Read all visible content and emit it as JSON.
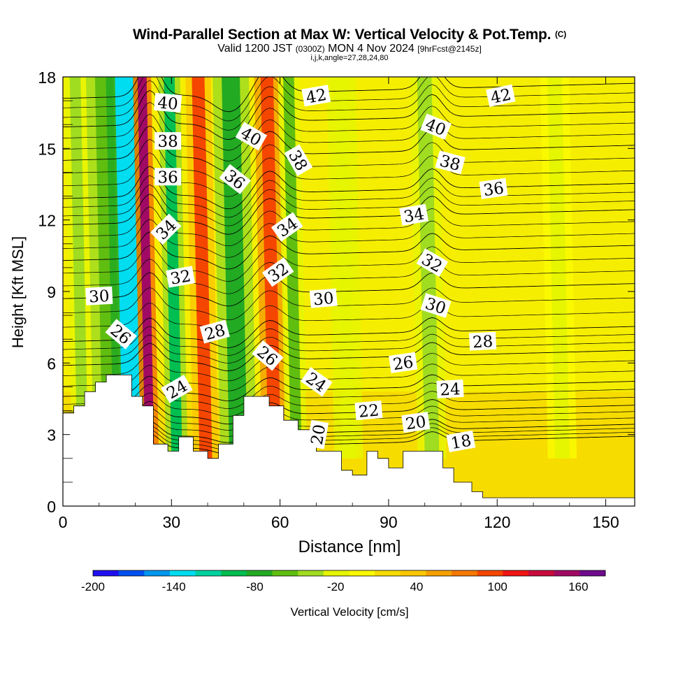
{
  "title": {
    "main": "Wind-Parallel Section at Max W: Vertical Velocity & Pot.Temp.",
    "copyright": "(C)",
    "valid_prefix": "Valid 1200 JST",
    "valid_utc": "(0300Z)",
    "valid_date": "MON 4 Nov 2024",
    "forecast": "[9hrFcst@2145z]",
    "indices": "i,j,k,angle=27,28,24,80"
  },
  "chart_data": {
    "type": "heatmap",
    "xlabel": "Distance [nm]",
    "ylabel": "Height [Kft MSL]",
    "xlim": [
      0,
      158
    ],
    "ylim": [
      0,
      18
    ],
    "x_ticks": [
      0,
      30,
      60,
      90,
      120,
      150
    ],
    "y_ticks": [
      0,
      3,
      6,
      9,
      12,
      15,
      18
    ],
    "colorbar": {
      "label": "Vertical Velocity [cm/s]",
      "range": [
        -200,
        180
      ],
      "tick_labels": [
        "-200",
        "-140",
        "-80",
        "-20",
        "40",
        "100",
        "160"
      ],
      "colors": [
        "#1f0fef",
        "#0050f0",
        "#0096f0",
        "#00dcf0",
        "#00d2a0",
        "#00be50",
        "#22aa22",
        "#60be10",
        "#a0dc20",
        "#e6f500",
        "#fafa00",
        "#f5dc00",
        "#fac800",
        "#f5a000",
        "#f57800",
        "#f54600",
        "#f01414",
        "#c80a3c",
        "#a00a64",
        "#6e0a8c"
      ]
    },
    "w_columns": [
      {
        "x": 5.5,
        "w": 3,
        "value": -30
      },
      {
        "x": 13.5,
        "w": 5,
        "value": -60
      },
      {
        "x": 19,
        "w": 5,
        "value": -140
      },
      {
        "x": 24,
        "w": 2.5,
        "value": 150
      },
      {
        "x": 31.5,
        "w": 3,
        "value": -90
      },
      {
        "x": 39.5,
        "w": 3.5,
        "value": 90
      },
      {
        "x": 48.5,
        "w": 5,
        "value": -70
      },
      {
        "x": 58.5,
        "w": 3.5,
        "value": 100
      },
      {
        "x": 64.5,
        "w": 3,
        "value": -50
      },
      {
        "x": 79,
        "w": 4,
        "value": -25
      },
      {
        "x": 102,
        "w": 4,
        "value": -35
      },
      {
        "x": 138,
        "w": 4,
        "value": -20
      }
    ],
    "terrain_kft": [
      [
        0,
        3.9
      ],
      [
        3,
        3.9
      ],
      [
        3,
        4.2
      ],
      [
        6,
        4.2
      ],
      [
        6,
        4.8
      ],
      [
        9,
        4.8
      ],
      [
        9,
        5.2
      ],
      [
        12,
        5.2
      ],
      [
        12,
        5.5
      ],
      [
        19,
        5.5
      ],
      [
        19,
        4.6
      ],
      [
        22,
        4.6
      ],
      [
        22,
        4.2
      ],
      [
        25,
        4.2
      ],
      [
        25,
        2.6
      ],
      [
        29,
        2.6
      ],
      [
        29,
        2.3
      ],
      [
        32,
        2.3
      ],
      [
        32,
        2.9
      ],
      [
        36,
        2.9
      ],
      [
        36,
        2.3
      ],
      [
        40,
        2.3
      ],
      [
        40,
        2.0
      ],
      [
        43,
        2.0
      ],
      [
        43,
        2.6
      ],
      [
        47,
        2.6
      ],
      [
        47,
        3.8
      ],
      [
        50,
        3.8
      ],
      [
        50,
        4.6
      ],
      [
        57,
        4.6
      ],
      [
        57,
        4.2
      ],
      [
        61,
        4.2
      ],
      [
        61,
        3.6
      ],
      [
        65,
        3.6
      ],
      [
        65,
        3.2
      ],
      [
        70,
        3.2
      ],
      [
        70,
        2.3
      ],
      [
        77,
        2.3
      ],
      [
        77,
        1.5
      ],
      [
        80,
        1.5
      ],
      [
        80,
        1.3
      ],
      [
        84,
        1.3
      ],
      [
        84,
        2.3
      ],
      [
        87,
        2.3
      ],
      [
        87,
        2.0
      ],
      [
        90,
        2.0
      ],
      [
        90,
        1.6
      ],
      [
        94,
        1.6
      ],
      [
        94,
        2.3
      ],
      [
        105,
        2.3
      ],
      [
        105,
        1.6
      ],
      [
        108,
        1.6
      ],
      [
        108,
        1.0
      ],
      [
        113,
        1.0
      ],
      [
        113,
        0.6
      ],
      [
        116,
        0.6
      ],
      [
        116,
        0.35
      ],
      [
        158,
        0.35
      ],
      [
        158,
        0
      ]
    ],
    "theta_contours": [
      {
        "label": "18",
        "base": 2.3,
        "lx": 110,
        "ly": 2.7,
        "la": -10
      },
      {
        "label": "20",
        "base": 2.8,
        "lx": 97.5,
        "ly": 3.5,
        "la": -8
      },
      {
        "label": "22",
        "base": 3.6,
        "lx": 84.5,
        "ly": 4.0,
        "la": -5
      },
      {
        "label": "24",
        "base": 4.6,
        "lx": 107,
        "ly": 4.9,
        "la": -3
      },
      {
        "label": "26",
        "base": 5.9,
        "lx": 94,
        "ly": 6.0,
        "la": -8
      },
      {
        "label": "28",
        "base": 6.9,
        "lx": 116,
        "ly": 6.9,
        "la": -3
      },
      {
        "label": "30",
        "base": 8.7,
        "lx": 10,
        "ly": 8.8,
        "la": -3
      },
      {
        "label": "32",
        "base": 10.3,
        "lx": 102,
        "ly": 10.2,
        "la": 30
      },
      {
        "label": "34",
        "base": 11.8,
        "lx": 97,
        "ly": 12.2,
        "la": -10
      },
      {
        "label": "36",
        "base": 12.9,
        "lx": 119,
        "ly": 13.3,
        "la": -8
      },
      {
        "label": "38",
        "base": 14.5,
        "lx": 107,
        "ly": 14.4,
        "la": 15
      },
      {
        "label": "40",
        "base": 15.9,
        "lx": 103,
        "ly": 15.9,
        "la": 22
      },
      {
        "label": "42",
        "base": 17.1,
        "lx": 121,
        "ly": 17.2,
        "la": -12
      }
    ],
    "extra_labels": [
      {
        "label": "40",
        "lx": 29,
        "ly": 16.9,
        "la": 5
      },
      {
        "label": "38",
        "lx": 29,
        "ly": 15.3,
        "la": 0
      },
      {
        "label": "36",
        "lx": 29,
        "ly": 13.8,
        "la": 0
      },
      {
        "label": "34",
        "lx": 28.5,
        "ly": 11.6,
        "la": -45
      },
      {
        "label": "32",
        "lx": 32.5,
        "ly": 9.6,
        "la": -10
      },
      {
        "label": "26",
        "lx": 16,
        "ly": 7.2,
        "la": 40
      },
      {
        "label": "24",
        "lx": 31.5,
        "ly": 4.9,
        "la": -30
      },
      {
        "label": "28",
        "lx": 42,
        "ly": 7.3,
        "la": -15
      },
      {
        "label": "26",
        "lx": 56.5,
        "ly": 6.3,
        "la": 40
      },
      {
        "label": "24",
        "lx": 70,
        "ly": 5.2,
        "la": 35
      },
      {
        "label": "20",
        "lx": 70.5,
        "ly": 3.0,
        "la": -80
      },
      {
        "label": "40",
        "lx": 52,
        "ly": 15.5,
        "la": 30
      },
      {
        "label": "36",
        "lx": 47.5,
        "ly": 13.7,
        "la": 38
      },
      {
        "label": "38",
        "lx": 65,
        "ly": 14.5,
        "la": 60
      },
      {
        "label": "34",
        "lx": 62,
        "ly": 11.7,
        "la": -35
      },
      {
        "label": "32",
        "lx": 59.5,
        "ly": 9.8,
        "la": -35
      },
      {
        "label": "30",
        "lx": 72,
        "ly": 8.7,
        "la": -5
      },
      {
        "label": "42",
        "lx": 70,
        "ly": 17.2,
        "la": -10
      },
      {
        "label": "30",
        "lx": 103,
        "ly": 8.4,
        "la": 18
      }
    ]
  }
}
